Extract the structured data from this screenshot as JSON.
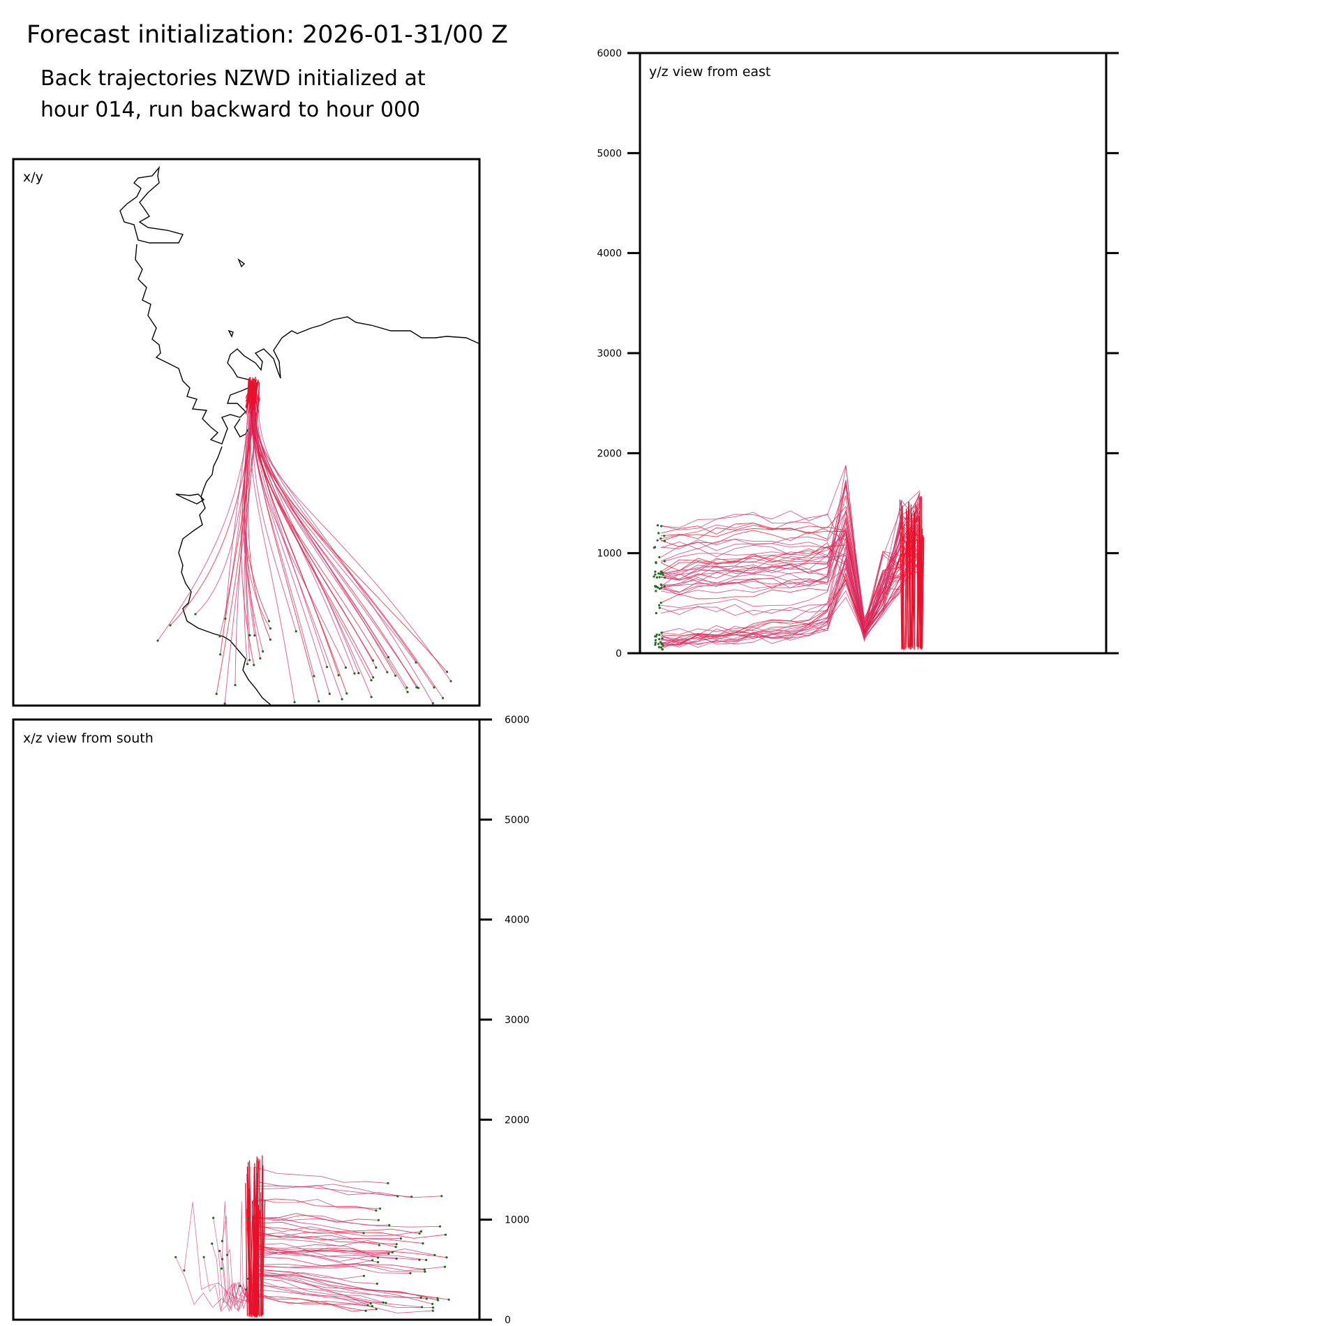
{
  "header": {
    "title": "Forecast initialization: 2026-01-31/00 Z",
    "subtitle_line1": "Back trajectories NZWD initialized at",
    "subtitle_line2": "hour 014, run backward to hour 000"
  },
  "colors": {
    "trajectory": "#e8102a",
    "trajectory_light": "#d6336c",
    "endpoint_marker": "#1a6b1a",
    "coastline": "#000000",
    "frame": "#000000"
  },
  "chart_data": [
    {
      "type": "line",
      "panel": "x/y",
      "title": "x/y",
      "description_of_content": "trajectory paths in plan view with coastline",
      "axes_visible": false,
      "grid": false
    },
    {
      "type": "line",
      "panel": "y/z",
      "title": "y/z view from east",
      "ylim": [
        0,
        6000
      ],
      "yticks": [
        0,
        1000,
        2000,
        3000,
        4000,
        5000,
        6000
      ],
      "ytick_labels": [
        "0",
        "1000",
        "2000",
        "3000",
        "4000",
        "5000",
        "6000"
      ],
      "yaxis_side": "left",
      "grid": false,
      "series": [
        {
          "kind": "upper-arrival",
          "values": [
            1050,
            1070,
            1090,
            1110,
            1130,
            1140,
            1150,
            1140,
            1130,
            1120,
            1580,
            300,
            900,
            1300,
            1500
          ]
        },
        {
          "kind": "mid",
          "values": [
            700,
            720,
            740,
            760,
            770,
            780,
            790,
            800,
            820,
            860,
            1200,
            250,
            700,
            1100,
            1350
          ]
        },
        {
          "kind": "low",
          "values": [
            150,
            160,
            180,
            200,
            220,
            240,
            260,
            280,
            320,
            400,
            900,
            200,
            600,
            1000,
            1300
          ]
        }
      ]
    },
    {
      "type": "line",
      "panel": "x/z",
      "title": "x/z view from south",
      "ylim": [
        0,
        6000
      ],
      "yticks": [
        0,
        1000,
        2000,
        3000,
        4000,
        5000,
        6000
      ],
      "ytick_labels": [
        "0",
        "1000",
        "2000",
        "3000",
        "4000",
        "5000",
        "6000"
      ],
      "yaxis_side": "right",
      "grid": false,
      "series": [
        {
          "kind": "upper",
          "values": [
            1150,
            1140,
            1130,
            1110,
            1090,
            1070,
            1050
          ]
        },
        {
          "kind": "mid",
          "values": [
            800,
            780,
            760,
            740,
            720,
            700
          ]
        },
        {
          "kind": "low",
          "values": [
            400,
            350,
            300,
            250,
            200,
            150
          ]
        }
      ]
    }
  ]
}
